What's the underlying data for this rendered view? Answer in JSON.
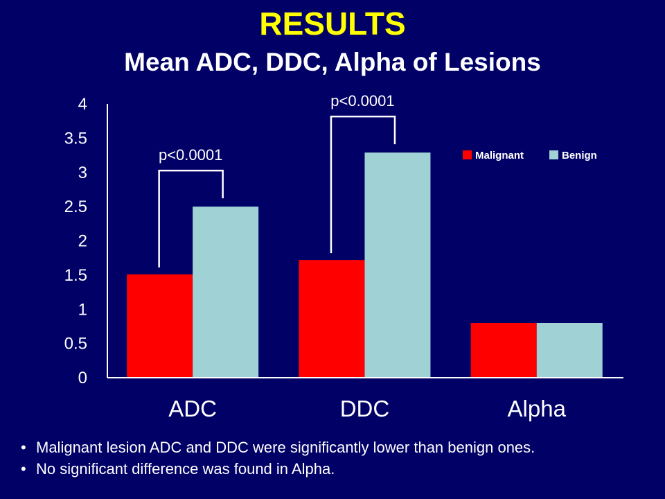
{
  "slide": {
    "title": "RESULTS",
    "subtitle": "Mean ADC, DDC, Alpha of Lesions",
    "bullets": [
      "Malignant lesion ADC and DDC were significantly lower than benign ones.",
      "No significant difference was found in Alpha."
    ],
    "bullet_glyph": "•"
  },
  "chart_data": {
    "type": "bar",
    "title": "Mean ADC, DDC, Alpha of Lesions",
    "xlabel": "",
    "ylabel": "",
    "categories": [
      "ADC",
      "DDC",
      "Alpha"
    ],
    "series": [
      {
        "name": "Malignant",
        "color": "#ff0000",
        "values": [
          1.51,
          1.72,
          0.8
        ]
      },
      {
        "name": "Benign",
        "color": "#9fd1d5",
        "values": [
          2.5,
          3.29,
          0.8
        ]
      }
    ],
    "ylim": [
      0,
      4
    ],
    "yticks": [
      "0",
      "0.5",
      "1",
      "1.5",
      "2",
      "2.5",
      "3",
      "3.5",
      "4"
    ],
    "grid": false,
    "legend_position": "top-right",
    "annotations": [
      {
        "category": "ADC",
        "text": "p<0.0001"
      },
      {
        "category": "DDC",
        "text": "p<0.0001"
      }
    ]
  },
  "colors": {
    "background": "#010066",
    "title": "#ffff00",
    "text": "#ffffff"
  }
}
